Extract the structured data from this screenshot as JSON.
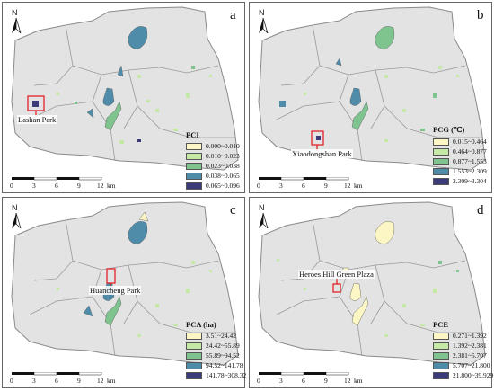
{
  "panels": [
    {
      "id": "a",
      "letter": "a",
      "park_label": "Lashan Park",
      "legend_title": "PCI",
      "classes": [
        "0.000~0.010",
        "0.010~0.023",
        "0.023~0.038",
        "0.038~0.065",
        "0.065~0.096"
      ]
    },
    {
      "id": "b",
      "letter": "b",
      "park_label": "Xiaodongshan Park",
      "legend_title": "PCG (℃)",
      "classes": [
        "0.015~0.464",
        "0.464~0.877",
        "0.877~1.553",
        "1.553~2.309",
        "2.309~3.304"
      ]
    },
    {
      "id": "c",
      "letter": "c",
      "park_label": "Huancheng Park",
      "legend_title": "PCA (ha)",
      "classes": [
        "3.51~24.42",
        "24.42~55.89",
        "55.89~94.52",
        "94.52~141.78",
        "141.78~308.32"
      ]
    },
    {
      "id": "d",
      "letter": "d",
      "park_label": "Heroes Hill Green Plaza",
      "legend_title": "PCE",
      "classes": [
        "0.271~1.392",
        "1.392~2.381",
        "2.381~5.707",
        "5.707~21.800",
        "21.800~39.929"
      ]
    }
  ],
  "north_label": "N",
  "scale": {
    "ticks": [
      "0",
      "3",
      "6",
      "9",
      "12"
    ],
    "unit": "km"
  },
  "class_colors": [
    "#fbf6c3",
    "#c6e8a6",
    "#7fc48f",
    "#4f8caa",
    "#3a3b78"
  ],
  "colors": {
    "city_fill": "#e3e3e3",
    "boundary": "#8a8a8a",
    "highlight": "#e3141a"
  }
}
